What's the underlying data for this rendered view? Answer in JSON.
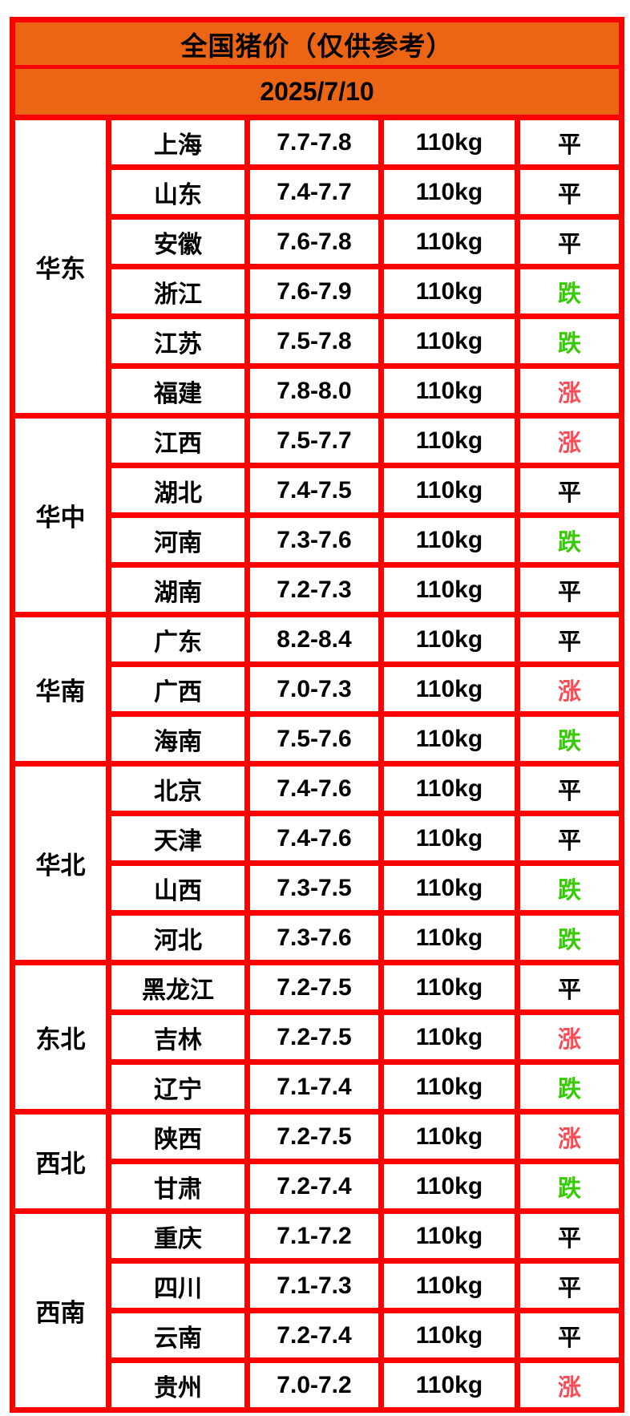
{
  "header": {
    "title": "全国猪价（仅供参考）",
    "date": "2025/7/10"
  },
  "colors": {
    "header_bg": "#EC6514",
    "grid_border": "#FE0000",
    "trend_up": "#FA4B55",
    "trend_down": "#33CC00",
    "trend_flat": "#000000"
  },
  "trend_labels": {
    "flat": "平",
    "down": "跌",
    "up": "涨"
  },
  "chart_data": {
    "type": "table",
    "title": "全国猪价（仅供参考）",
    "date": "2025/7/10",
    "columns": [
      "region",
      "province",
      "price",
      "weight",
      "trend"
    ],
    "regions": [
      {
        "name": "华东",
        "rows": [
          {
            "province": "上海",
            "price": "7.7-7.8",
            "weight": "110kg",
            "trend": "平"
          },
          {
            "province": "山东",
            "price": "7.4-7.7",
            "weight": "110kg",
            "trend": "平"
          },
          {
            "province": "安徽",
            "price": "7.6-7.8",
            "weight": "110kg",
            "trend": "平"
          },
          {
            "province": "浙江",
            "price": "7.6-7.9",
            "weight": "110kg",
            "trend": "跌"
          },
          {
            "province": "江苏",
            "price": "7.5-7.8",
            "weight": "110kg",
            "trend": "跌"
          },
          {
            "province": "福建",
            "price": "7.8-8.0",
            "weight": "110kg",
            "trend": "涨"
          }
        ]
      },
      {
        "name": "华中",
        "rows": [
          {
            "province": "江西",
            "price": "7.5-7.7",
            "weight": "110kg",
            "trend": "涨"
          },
          {
            "province": "湖北",
            "price": "7.4-7.5",
            "weight": "110kg",
            "trend": "平"
          },
          {
            "province": "河南",
            "price": "7.3-7.6",
            "weight": "110kg",
            "trend": "跌"
          },
          {
            "province": "湖南",
            "price": "7.2-7.3",
            "weight": "110kg",
            "trend": "平"
          }
        ]
      },
      {
        "name": "华南",
        "rows": [
          {
            "province": "广东",
            "price": "8.2-8.4",
            "weight": "110kg",
            "trend": "平"
          },
          {
            "province": "广西",
            "price": "7.0-7.3",
            "weight": "110kg",
            "trend": "涨"
          },
          {
            "province": "海南",
            "price": "7.5-7.6",
            "weight": "110kg",
            "trend": "跌"
          }
        ]
      },
      {
        "name": "华北",
        "rows": [
          {
            "province": "北京",
            "price": "7.4-7.6",
            "weight": "110kg",
            "trend": "平"
          },
          {
            "province": "天津",
            "price": "7.4-7.6",
            "weight": "110kg",
            "trend": "平"
          },
          {
            "province": "山西",
            "price": "7.3-7.5",
            "weight": "110kg",
            "trend": "跌"
          },
          {
            "province": "河北",
            "price": "7.3-7.6",
            "weight": "110kg",
            "trend": "跌"
          }
        ]
      },
      {
        "name": "东北",
        "rows": [
          {
            "province": "黑龙江",
            "price": "7.2-7.5",
            "weight": "110kg",
            "trend": "平"
          },
          {
            "province": "吉林",
            "price": "7.2-7.5",
            "weight": "110kg",
            "trend": "涨"
          },
          {
            "province": "辽宁",
            "price": "7.1-7.4",
            "weight": "110kg",
            "trend": "跌"
          }
        ]
      },
      {
        "name": "西北",
        "rows": [
          {
            "province": "陕西",
            "price": "7.2-7.5",
            "weight": "110kg",
            "trend": "涨"
          },
          {
            "province": "甘肃",
            "price": "7.2-7.4",
            "weight": "110kg",
            "trend": "跌"
          }
        ]
      },
      {
        "name": "西南",
        "rows": [
          {
            "province": "重庆",
            "price": "7.1-7.2",
            "weight": "110kg",
            "trend": "平"
          },
          {
            "province": "四川",
            "price": "7.1-7.3",
            "weight": "110kg",
            "trend": "平"
          },
          {
            "province": "云南",
            "price": "7.2-7.4",
            "weight": "110kg",
            "trend": "平"
          },
          {
            "province": "贵州",
            "price": "7.0-7.2",
            "weight": "110kg",
            "trend": "涨"
          }
        ]
      }
    ]
  }
}
